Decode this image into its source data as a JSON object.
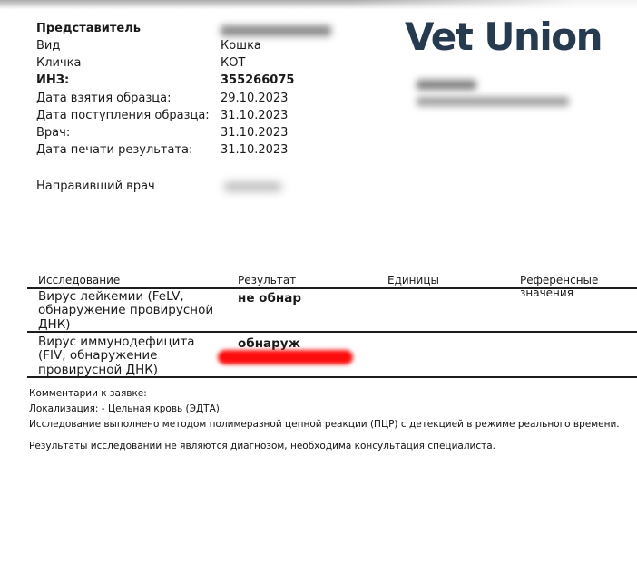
{
  "logo": {
    "text": "Vet Union",
    "color": "#263a50"
  },
  "info": {
    "rows": [
      {
        "label": "Представитель",
        "value": "",
        "redacted": true
      },
      {
        "label": "Вид",
        "value": "Кошка"
      },
      {
        "label": "Кличка",
        "value": "КОТ"
      },
      {
        "label": "ИНЗ:",
        "value": "355266075"
      },
      {
        "label": "Дата взятия образца:",
        "value": "29.10.2023"
      },
      {
        "label": "Дата поступления образца:",
        "value": "31.10.2023"
      },
      {
        "label": "Врач:",
        "value": "31.10.2023"
      },
      {
        "label": "Дата печати результата:",
        "value": "31.10.2023"
      }
    ],
    "referring_doctor_label": "Направивший врач",
    "referring_doctor_value_redacted": true
  },
  "table": {
    "headers": {
      "test": "Исследование",
      "result": "Результат",
      "units": "Единицы",
      "reference": "Референсные значения"
    },
    "rows": [
      {
        "test": "Вирус лейкемии (FeLV, обнаружение провирусной ДНК)",
        "result": "не обнар",
        "units": "",
        "reference": "",
        "redaction": false
      },
      {
        "test": "Вирус иммунодефицита (FIV, обнаружение провирусной ДНК)",
        "result": "обнаруж",
        "units": "",
        "reference": "",
        "redaction": true
      }
    ],
    "redaction_color": "#fb0d0d"
  },
  "comments": {
    "title": "Комментарии к заявке:",
    "line1": "Локализация: - Цельная кровь (ЭДТА).",
    "line2": "Исследование выполнено методом полимеразной цепной реакции (ПЦР) с детекцией в режиме реального времени.",
    "disclaimer": "Результаты исследований не являются диагнозом, необходима консультация специалиста."
  }
}
